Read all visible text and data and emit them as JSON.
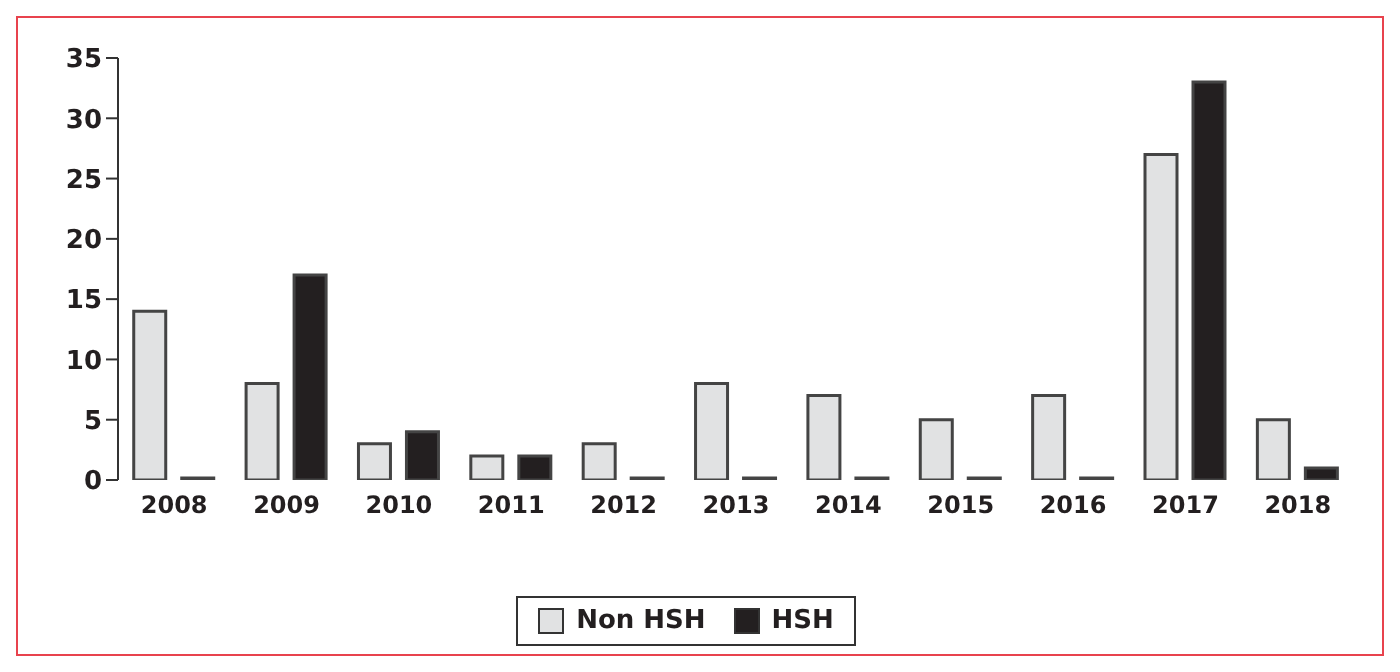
{
  "chart_data": {
    "type": "bar",
    "categories": [
      "2008",
      "2009",
      "2010",
      "2011",
      "2012",
      "2013",
      "2014",
      "2015",
      "2016",
      "2017",
      "2018"
    ],
    "series": [
      {
        "name": "Non HSH",
        "color": "#e1e2e3",
        "values": [
          14,
          8,
          3,
          2,
          3,
          8,
          7,
          5,
          7,
          27,
          5
        ]
      },
      {
        "name": "HSH",
        "color": "#231f20",
        "values": [
          0,
          17,
          4,
          2,
          0,
          0,
          0,
          0,
          0,
          33,
          1
        ]
      }
    ],
    "ylim": [
      0,
      35
    ],
    "yticks": [
      0,
      5,
      10,
      15,
      20,
      25,
      30,
      35
    ],
    "grid": false,
    "legend": "bottom"
  }
}
